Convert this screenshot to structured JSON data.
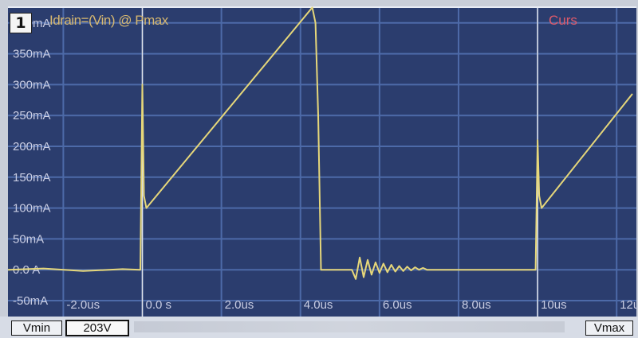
{
  "screen": {
    "channel": "1",
    "trace_title": "Idrain=(Vin) @ Pmax",
    "cursor_label": "Curs",
    "colors": {
      "background": "#2b3d6e",
      "grid": "#4d6aa8",
      "trace": "#e6d77a",
      "cursor": "#f2f2f2",
      "label": "#c9cde3"
    }
  },
  "controls": {
    "vmin_label": "Vmin",
    "vmin_value": "203V",
    "vmax_label": "Vmax"
  },
  "chart_data": {
    "type": "line",
    "title": "Idrain=(Vin) @ Pmax",
    "y_unit": "mA",
    "x_unit": "µs",
    "ylim": [
      -50,
      450
    ],
    "xlim": [
      -3.4,
      12.5
    ],
    "grid": true,
    "y_ticks": [
      {
        "value": 400,
        "label": "400mA"
      },
      {
        "value": 350,
        "label": "350mA"
      },
      {
        "value": 300,
        "label": "300mA"
      },
      {
        "value": 250,
        "label": "250mA"
      },
      {
        "value": 200,
        "label": "200mA"
      },
      {
        "value": 150,
        "label": "150mA"
      },
      {
        "value": 100,
        "label": "100mA"
      },
      {
        "value": 50,
        "label": "50mA"
      },
      {
        "value": 0,
        "label": "0.0 A"
      },
      {
        "value": -50,
        "label": "-50mA"
      }
    ],
    "x_ticks": [
      {
        "value": -2,
        "label": "-2.0us"
      },
      {
        "value": 0,
        "label": "0.0 s"
      },
      {
        "value": 2,
        "label": "2.0us"
      },
      {
        "value": 4,
        "label": "4.0us"
      },
      {
        "value": 6,
        "label": "6.0us"
      },
      {
        "value": 8,
        "label": "8.0us"
      },
      {
        "value": 10,
        "label": "10us"
      },
      {
        "value": 12,
        "label": "12us"
      }
    ],
    "cursors": [
      0,
      10
    ],
    "series": [
      {
        "points": [
          [
            -3.4,
            0
          ],
          [
            -2.5,
            2
          ],
          [
            -1.5,
            -2
          ],
          [
            -0.5,
            1
          ],
          [
            -0.05,
            0
          ],
          [
            0,
            300
          ],
          [
            0.04,
            120
          ],
          [
            0.1,
            100
          ],
          [
            4.3,
            425
          ],
          [
            4.38,
            400
          ],
          [
            4.45,
            250
          ],
          [
            4.52,
            0
          ],
          [
            5.3,
            0
          ],
          [
            5.4,
            -15
          ],
          [
            5.5,
            20
          ],
          [
            5.6,
            -12
          ],
          [
            5.7,
            16
          ],
          [
            5.8,
            -8
          ],
          [
            5.9,
            12
          ],
          [
            6.0,
            -5
          ],
          [
            6.1,
            10
          ],
          [
            6.2,
            -4
          ],
          [
            6.3,
            8
          ],
          [
            6.4,
            -3
          ],
          [
            6.5,
            6
          ],
          [
            6.6,
            -2
          ],
          [
            6.7,
            5
          ],
          [
            6.8,
            -1
          ],
          [
            6.9,
            4
          ],
          [
            7.0,
            0
          ],
          [
            7.1,
            3
          ],
          [
            7.2,
            0
          ],
          [
            9.95,
            0
          ],
          [
            10.0,
            210
          ],
          [
            10.04,
            120
          ],
          [
            10.1,
            100
          ],
          [
            12.4,
            285
          ]
        ]
      }
    ]
  }
}
